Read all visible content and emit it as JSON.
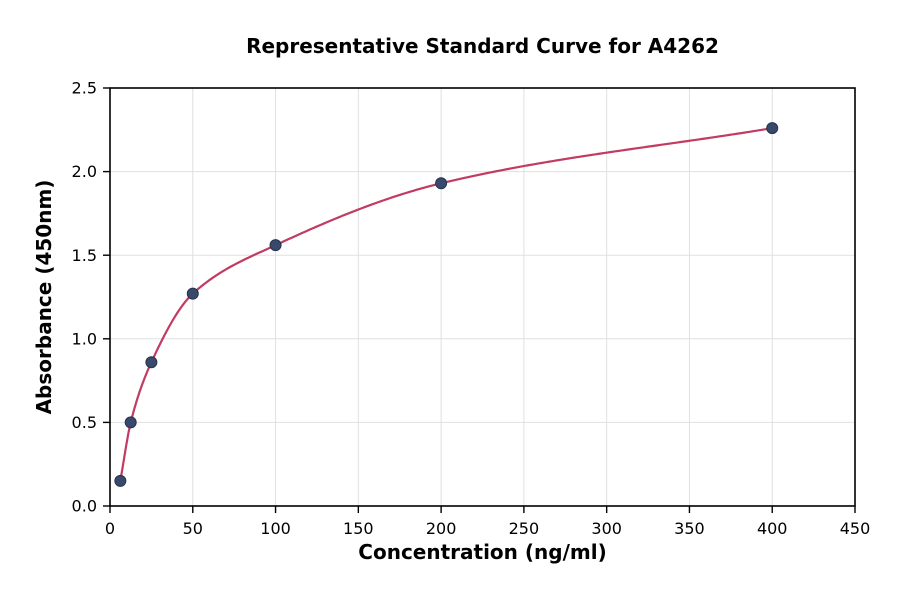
{
  "chart_data": {
    "type": "scatter",
    "title": "Representative Standard Curve for A4262",
    "xlabel": "Concentration (ng/ml)",
    "ylabel": "Absorbance (450nm)",
    "x": [
      6.25,
      12.5,
      25,
      50,
      100,
      200,
      400
    ],
    "y": [
      0.15,
      0.5,
      0.86,
      1.27,
      1.56,
      1.93,
      2.26
    ],
    "xlim": [
      0,
      450
    ],
    "ylim": [
      0,
      2.5
    ],
    "xticks": [
      0,
      50,
      100,
      150,
      200,
      250,
      300,
      350,
      400,
      450
    ],
    "xtick_labels": [
      "0",
      "50",
      "100",
      "150",
      "200",
      "250",
      "300",
      "350",
      "400",
      "450"
    ],
    "yticks": [
      0,
      0.5,
      1.0,
      1.5,
      2.0,
      2.5
    ],
    "ytick_labels": [
      "0.0",
      "0.5",
      "1.0",
      "1.5",
      "2.0",
      "2.5"
    ],
    "grid": true,
    "legend": "none",
    "colors": {
      "curve": "#c23b62",
      "point": "#39496b",
      "grid": "#e0e0e0",
      "spine": "#000000",
      "background": "#ffffff"
    }
  }
}
